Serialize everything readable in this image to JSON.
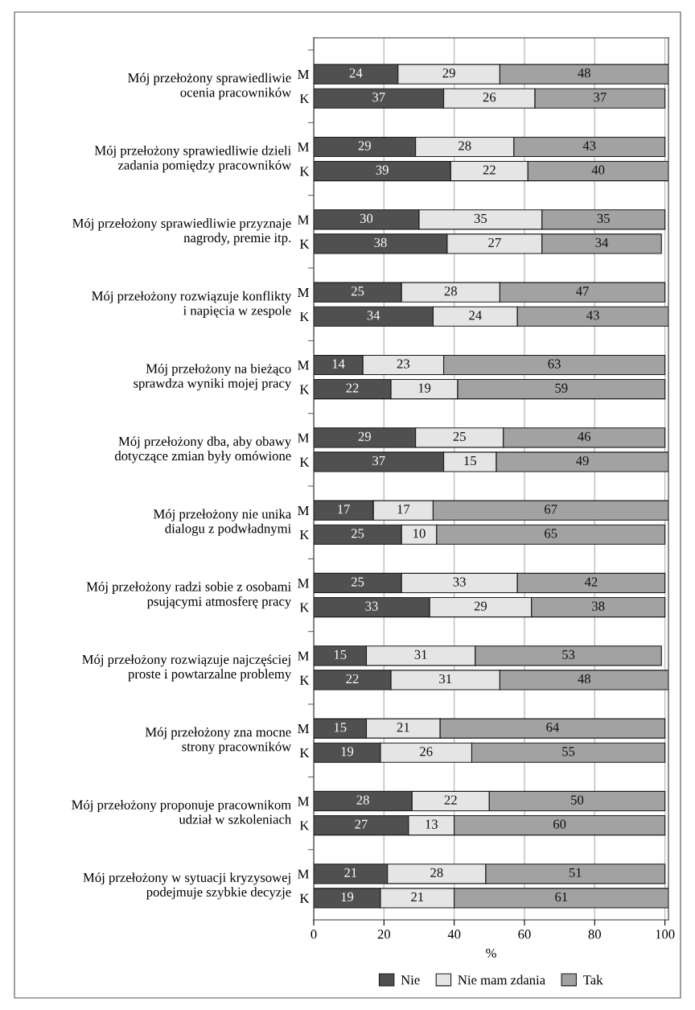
{
  "chart_data": {
    "type": "bar",
    "orientation": "horizontal",
    "stacked": true,
    "data_labels": true,
    "categories": [
      null,
      "M",
      "K",
      null,
      "M",
      "K",
      null,
      "M",
      "K",
      null,
      "M",
      "K",
      null,
      "M",
      "K",
      null,
      "M",
      "K",
      null,
      "M",
      "K",
      null,
      "M",
      "K",
      null,
      "M",
      "K",
      null,
      "M",
      "K",
      null,
      "M",
      "K",
      null,
      "M",
      "K"
    ],
    "annotations": [
      "Mój przełożony sprawiedliwie\nocenia pracowników",
      "Mój przełożony sprawiedliwie dzieli\nzadania pomiędzy pracowników",
      "Mój przełożony sprawiedliwie przyznaje\nnagrody, premie itp.",
      "Mój przełożony rozwiązuje konflikty\ni napięcia w zespole",
      "Mój przełożony na bieżąco\nsprawdza wyniki mojej pracy",
      "Mój przełożony dba, aby obawy\ndotyczące zmian były omówione",
      "Mój przełożony nie unika\ndialogu z podwładnymi",
      "Mój przełożony radzi sobie z osobami\npsującymi atmosferę pracy",
      "Mój przełożony rozwiązuje najczęściej\nproste i powtarzalne problemy",
      "Mój przełożony zna mocne\nstrony pracowników",
      "Mój przełożony proponuje pracownikom\nudział w szkoleniach",
      "Mój przełożony w sytuacji kryzysowej\npodejmuje szybkie decyzje"
    ],
    "series": [
      {
        "name": "Nie",
        "color": "#505050",
        "values": [
          null,
          24,
          37,
          null,
          29,
          39,
          null,
          30,
          38,
          null,
          25,
          34,
          null,
          14,
          22,
          null,
          29,
          37,
          null,
          17,
          25,
          null,
          25,
          33,
          null,
          15,
          22,
          null,
          15,
          19,
          null,
          28,
          27,
          null,
          21,
          19
        ]
      },
      {
        "name": "Nie mam zdania",
        "color": "#e4e5e4",
        "values": [
          null,
          29,
          26,
          null,
          28,
          22,
          null,
          35,
          27,
          null,
          28,
          24,
          null,
          23,
          19,
          null,
          25,
          15,
          null,
          17,
          10,
          null,
          33,
          29,
          null,
          31,
          31,
          null,
          21,
          26,
          null,
          22,
          13,
          null,
          28,
          21
        ]
      },
      {
        "name": "Tak",
        "color": "#a2a2a2",
        "values": [
          null,
          48,
          37,
          null,
          43,
          40,
          null,
          35,
          34,
          null,
          47,
          43,
          null,
          63,
          59,
          null,
          46,
          49,
          null,
          67,
          65,
          null,
          42,
          38,
          null,
          53,
          48,
          null,
          64,
          55,
          null,
          50,
          60,
          null,
          51,
          61
        ]
      }
    ],
    "xlim": [
      0,
      101
    ],
    "xticks": [
      0,
      20,
      40,
      60,
      80,
      100
    ],
    "xlabel": "%",
    "grid": "x",
    "legend": "bottom"
  }
}
